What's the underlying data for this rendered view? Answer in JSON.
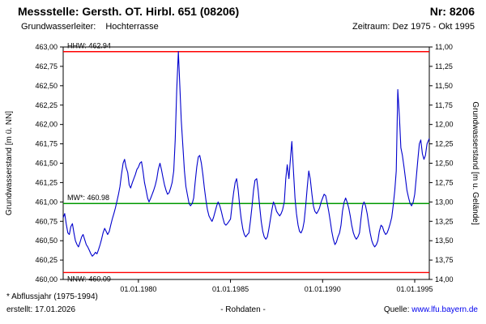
{
  "header": {
    "title": "Messstelle: Gersth. OT. Hirbl. 651 (08206)",
    "number": "Nr: 8206",
    "aquifer_label": "Grundwasserleiter:",
    "aquifer_value": "Hochterrasse",
    "period": "Zeitraum: Dez 1975 - Okt 1995"
  },
  "footer": {
    "note": "* Abflussjahr (1975-1994)",
    "created": "erstellt: 17.01.2026",
    "center": "- Rohdaten -",
    "source_label": "Quelle:",
    "source_link": "www.lfu.bayern.de"
  },
  "colors": {
    "series": "#0000cd",
    "extreme_line": "#ff0000",
    "mean_line": "#009900",
    "axis": "#000000",
    "link": "#0000ee"
  },
  "chart_data": {
    "type": "line",
    "title": "",
    "ylabel_left": "Grundwasserstand [m ü. NN]",
    "ylabel_right": "Grundwasserstand [m u. Gelände]",
    "ylim_left": [
      460.0,
      463.0
    ],
    "ylim_right": [
      14.0,
      11.0
    ],
    "xlim": [
      1975.917,
      1995.792
    ],
    "grid": false,
    "legend": "none",
    "x_ticks": [
      {
        "t": 1980.0,
        "label": "01.01.1980"
      },
      {
        "t": 1985.0,
        "label": "01.01.1985"
      },
      {
        "t": 1990.0,
        "label": "01.01.1990"
      },
      {
        "t": 1995.0,
        "label": "01.01.1995"
      }
    ],
    "y_ticks": [
      {
        "v": 463.0,
        "left": "463,00",
        "right": "11,00"
      },
      {
        "v": 462.75,
        "left": "462,75",
        "right": "11,25"
      },
      {
        "v": 462.5,
        "left": "462,50",
        "right": "11,50"
      },
      {
        "v": 462.25,
        "left": "462,25",
        "right": "11,75"
      },
      {
        "v": 462.0,
        "left": "462,00",
        "right": "12,00"
      },
      {
        "v": 461.75,
        "left": "461,75",
        "right": "12,25"
      },
      {
        "v": 461.5,
        "left": "461,50",
        "right": "12,50"
      },
      {
        "v": 461.25,
        "left": "461,25",
        "right": "12,75"
      },
      {
        "v": 461.0,
        "left": "461,00",
        "right": "13,00"
      },
      {
        "v": 460.75,
        "left": "460,75",
        "right": "13,25"
      },
      {
        "v": 460.5,
        "left": "460,50",
        "right": "13,50"
      },
      {
        "v": 460.25,
        "left": "460,25",
        "right": "13,75"
      },
      {
        "v": 460.0,
        "left": "460,00",
        "right": "14,00"
      }
    ],
    "reference_lines": [
      {
        "name": "HHW",
        "label": "HHW: 462.94",
        "value": 462.94,
        "color": "#ff0000",
        "label_side": "above"
      },
      {
        "name": "MW",
        "label": "MW*: 460.98",
        "value": 460.98,
        "color": "#009900",
        "label_side": "above"
      },
      {
        "name": "NNW",
        "label": "NNW: 460.09",
        "value": 460.09,
        "color": "#ff0000",
        "label_side": "below"
      }
    ],
    "series": [
      {
        "name": "Grundwasserstand Rohdaten",
        "color": "#0000cd",
        "points": [
          [
            1975.92,
            460.8
          ],
          [
            1976.0,
            460.85
          ],
          [
            1976.08,
            460.72
          ],
          [
            1976.17,
            460.6
          ],
          [
            1976.25,
            460.58
          ],
          [
            1976.33,
            460.68
          ],
          [
            1976.42,
            460.72
          ],
          [
            1976.5,
            460.6
          ],
          [
            1976.58,
            460.5
          ],
          [
            1976.67,
            460.45
          ],
          [
            1976.75,
            460.42
          ],
          [
            1976.83,
            460.48
          ],
          [
            1976.92,
            460.55
          ],
          [
            1977.0,
            460.58
          ],
          [
            1977.08,
            460.52
          ],
          [
            1977.17,
            460.45
          ],
          [
            1977.25,
            460.42
          ],
          [
            1977.33,
            460.38
          ],
          [
            1977.42,
            460.33
          ],
          [
            1977.5,
            460.3
          ],
          [
            1977.58,
            460.32
          ],
          [
            1977.67,
            460.35
          ],
          [
            1977.75,
            460.33
          ],
          [
            1977.83,
            460.38
          ],
          [
            1977.92,
            460.45
          ],
          [
            1978.0,
            460.52
          ],
          [
            1978.08,
            460.6
          ],
          [
            1978.17,
            460.66
          ],
          [
            1978.25,
            460.62
          ],
          [
            1978.33,
            460.58
          ],
          [
            1978.42,
            460.62
          ],
          [
            1978.5,
            460.7
          ],
          [
            1978.58,
            460.78
          ],
          [
            1978.67,
            460.85
          ],
          [
            1978.75,
            460.92
          ],
          [
            1978.83,
            461.0
          ],
          [
            1978.92,
            461.1
          ],
          [
            1979.0,
            461.2
          ],
          [
            1979.08,
            461.35
          ],
          [
            1979.17,
            461.5
          ],
          [
            1979.25,
            461.55
          ],
          [
            1979.33,
            461.45
          ],
          [
            1979.42,
            461.38
          ],
          [
            1979.5,
            461.22
          ],
          [
            1979.58,
            461.18
          ],
          [
            1979.67,
            461.25
          ],
          [
            1979.75,
            461.3
          ],
          [
            1979.83,
            461.35
          ],
          [
            1979.92,
            461.42
          ],
          [
            1980.0,
            461.45
          ],
          [
            1980.08,
            461.5
          ],
          [
            1980.17,
            461.52
          ],
          [
            1980.25,
            461.4
          ],
          [
            1980.33,
            461.25
          ],
          [
            1980.42,
            461.15
          ],
          [
            1980.5,
            461.05
          ],
          [
            1980.58,
            461.0
          ],
          [
            1980.67,
            461.05
          ],
          [
            1980.75,
            461.1
          ],
          [
            1980.83,
            461.15
          ],
          [
            1980.92,
            461.22
          ],
          [
            1981.0,
            461.3
          ],
          [
            1981.08,
            461.42
          ],
          [
            1981.17,
            461.5
          ],
          [
            1981.25,
            461.42
          ],
          [
            1981.33,
            461.32
          ],
          [
            1981.42,
            461.22
          ],
          [
            1981.5,
            461.15
          ],
          [
            1981.58,
            461.1
          ],
          [
            1981.67,
            461.12
          ],
          [
            1981.75,
            461.18
          ],
          [
            1981.83,
            461.25
          ],
          [
            1981.92,
            461.4
          ],
          [
            1982.0,
            461.8
          ],
          [
            1982.08,
            462.45
          ],
          [
            1982.17,
            462.94
          ],
          [
            1982.25,
            462.5
          ],
          [
            1982.33,
            462.05
          ],
          [
            1982.42,
            461.7
          ],
          [
            1982.5,
            461.4
          ],
          [
            1982.58,
            461.2
          ],
          [
            1982.67,
            461.08
          ],
          [
            1982.75,
            460.98
          ],
          [
            1982.83,
            460.95
          ],
          [
            1982.92,
            460.98
          ],
          [
            1983.0,
            461.05
          ],
          [
            1983.08,
            461.25
          ],
          [
            1983.17,
            461.45
          ],
          [
            1983.25,
            461.58
          ],
          [
            1983.33,
            461.6
          ],
          [
            1983.42,
            461.5
          ],
          [
            1983.5,
            461.35
          ],
          [
            1983.58,
            461.18
          ],
          [
            1983.67,
            461.02
          ],
          [
            1983.75,
            460.9
          ],
          [
            1983.83,
            460.82
          ],
          [
            1983.92,
            460.78
          ],
          [
            1984.0,
            460.75
          ],
          [
            1984.08,
            460.8
          ],
          [
            1984.17,
            460.88
          ],
          [
            1984.25,
            460.95
          ],
          [
            1984.33,
            461.0
          ],
          [
            1984.42,
            460.95
          ],
          [
            1984.5,
            460.88
          ],
          [
            1984.58,
            460.8
          ],
          [
            1984.67,
            460.72
          ],
          [
            1984.75,
            460.7
          ],
          [
            1984.83,
            460.72
          ],
          [
            1984.92,
            460.75
          ],
          [
            1985.0,
            460.78
          ],
          [
            1985.08,
            460.95
          ],
          [
            1985.17,
            461.12
          ],
          [
            1985.25,
            461.25
          ],
          [
            1985.33,
            461.3
          ],
          [
            1985.42,
            461.15
          ],
          [
            1985.5,
            460.95
          ],
          [
            1985.58,
            460.78
          ],
          [
            1985.67,
            460.65
          ],
          [
            1985.75,
            460.58
          ],
          [
            1985.83,
            460.55
          ],
          [
            1985.92,
            460.58
          ],
          [
            1986.0,
            460.6
          ],
          [
            1986.08,
            460.75
          ],
          [
            1986.17,
            460.95
          ],
          [
            1986.25,
            461.15
          ],
          [
            1986.33,
            461.28
          ],
          [
            1986.42,
            461.3
          ],
          [
            1986.5,
            461.15
          ],
          [
            1986.58,
            460.95
          ],
          [
            1986.67,
            460.75
          ],
          [
            1986.75,
            460.62
          ],
          [
            1986.83,
            460.55
          ],
          [
            1986.92,
            460.52
          ],
          [
            1987.0,
            460.55
          ],
          [
            1987.08,
            460.65
          ],
          [
            1987.17,
            460.78
          ],
          [
            1987.25,
            460.9
          ],
          [
            1987.33,
            461.0
          ],
          [
            1987.42,
            460.95
          ],
          [
            1987.5,
            460.88
          ],
          [
            1987.58,
            460.85
          ],
          [
            1987.67,
            460.82
          ],
          [
            1987.75,
            460.85
          ],
          [
            1987.83,
            460.9
          ],
          [
            1987.92,
            461.0
          ],
          [
            1988.0,
            461.3
          ],
          [
            1988.08,
            461.48
          ],
          [
            1988.17,
            461.3
          ],
          [
            1988.25,
            461.55
          ],
          [
            1988.33,
            461.78
          ],
          [
            1988.42,
            461.4
          ],
          [
            1988.5,
            461.05
          ],
          [
            1988.58,
            460.85
          ],
          [
            1988.67,
            460.7
          ],
          [
            1988.75,
            460.62
          ],
          [
            1988.83,
            460.6
          ],
          [
            1988.92,
            460.65
          ],
          [
            1989.0,
            460.75
          ],
          [
            1989.08,
            460.95
          ],
          [
            1989.17,
            461.2
          ],
          [
            1989.25,
            461.4
          ],
          [
            1989.33,
            461.3
          ],
          [
            1989.42,
            461.1
          ],
          [
            1989.5,
            460.95
          ],
          [
            1989.58,
            460.88
          ],
          [
            1989.67,
            460.85
          ],
          [
            1989.75,
            460.88
          ],
          [
            1989.83,
            460.92
          ],
          [
            1989.92,
            461.0
          ],
          [
            1990.0,
            461.05
          ],
          [
            1990.08,
            461.1
          ],
          [
            1990.17,
            461.08
          ],
          [
            1990.25,
            460.98
          ],
          [
            1990.33,
            460.88
          ],
          [
            1990.42,
            460.75
          ],
          [
            1990.5,
            460.62
          ],
          [
            1990.58,
            460.52
          ],
          [
            1990.67,
            460.45
          ],
          [
            1990.75,
            460.48
          ],
          [
            1990.83,
            460.55
          ],
          [
            1990.92,
            460.6
          ],
          [
            1991.0,
            460.7
          ],
          [
            1991.08,
            460.88
          ],
          [
            1991.17,
            461.0
          ],
          [
            1991.25,
            461.05
          ],
          [
            1991.33,
            461.0
          ],
          [
            1991.42,
            460.92
          ],
          [
            1991.5,
            460.82
          ],
          [
            1991.58,
            460.7
          ],
          [
            1991.67,
            460.6
          ],
          [
            1991.75,
            460.55
          ],
          [
            1991.83,
            460.52
          ],
          [
            1991.92,
            460.55
          ],
          [
            1992.0,
            460.6
          ],
          [
            1992.08,
            460.78
          ],
          [
            1992.17,
            460.95
          ],
          [
            1992.25,
            461.0
          ],
          [
            1992.33,
            460.95
          ],
          [
            1992.42,
            460.85
          ],
          [
            1992.5,
            460.72
          ],
          [
            1992.58,
            460.6
          ],
          [
            1992.67,
            460.5
          ],
          [
            1992.75,
            460.45
          ],
          [
            1992.83,
            460.42
          ],
          [
            1992.92,
            460.45
          ],
          [
            1993.0,
            460.5
          ],
          [
            1993.08,
            460.62
          ],
          [
            1993.17,
            460.7
          ],
          [
            1993.25,
            460.68
          ],
          [
            1993.33,
            460.62
          ],
          [
            1993.42,
            460.58
          ],
          [
            1993.5,
            460.6
          ],
          [
            1993.58,
            460.65
          ],
          [
            1993.67,
            460.72
          ],
          [
            1993.75,
            460.8
          ],
          [
            1993.83,
            460.95
          ],
          [
            1993.92,
            461.15
          ],
          [
            1994.0,
            461.4
          ],
          [
            1994.08,
            462.45
          ],
          [
            1994.17,
            462.1
          ],
          [
            1994.25,
            461.7
          ],
          [
            1994.33,
            461.6
          ],
          [
            1994.42,
            461.45
          ],
          [
            1994.5,
            461.3
          ],
          [
            1994.58,
            461.15
          ],
          [
            1994.67,
            461.05
          ],
          [
            1994.75,
            460.98
          ],
          [
            1994.83,
            460.95
          ],
          [
            1994.92,
            461.0
          ],
          [
            1995.0,
            461.1
          ],
          [
            1995.08,
            461.3
          ],
          [
            1995.17,
            461.55
          ],
          [
            1995.25,
            461.75
          ],
          [
            1995.33,
            461.8
          ],
          [
            1995.42,
            461.62
          ],
          [
            1995.5,
            461.55
          ],
          [
            1995.58,
            461.6
          ],
          [
            1995.67,
            461.75
          ],
          [
            1995.79,
            461.82
          ]
        ]
      }
    ]
  }
}
